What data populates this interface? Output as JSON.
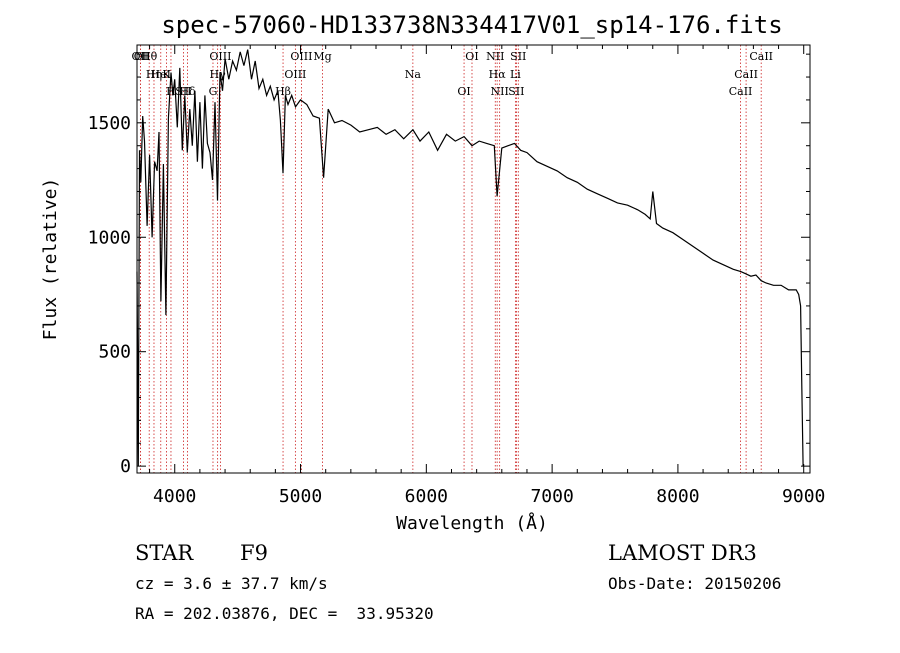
{
  "chart_data": {
    "type": "line",
    "title": "spec-57060-HD133738N334417V01_sp14-176.fits",
    "xlabel": "Wavelength (Å)",
    "ylabel": "Flux (relative)",
    "xlim": [
      3700,
      9050
    ],
    "ylim": [
      -30,
      1840
    ],
    "x_ticks": [
      4000,
      5000,
      6000,
      7000,
      8000,
      9000
    ],
    "x_tick_labels": [
      "4000",
      "5000",
      "6000",
      "7000",
      "8000",
      "9000"
    ],
    "y_ticks": [
      0,
      500,
      1000,
      1500
    ],
    "y_tick_labels": [
      "0",
      "500",
      "1000",
      "1500"
    ],
    "grid": false,
    "series": [
      {
        "name": "spectrum",
        "color": "#000000",
        "x": [
          3700,
          3710,
          3720,
          3730,
          3745,
          3760,
          3780,
          3800,
          3820,
          3840,
          3860,
          3875,
          3890,
          3910,
          3930,
          3950,
          3970,
          3985,
          4000,
          4020,
          4040,
          4060,
          4080,
          4100,
          4120,
          4140,
          4160,
          4180,
          4200,
          4220,
          4240,
          4260,
          4280,
          4300,
          4320,
          4340,
          4360,
          4380,
          4400,
          4430,
          4460,
          4490,
          4520,
          4550,
          4580,
          4610,
          4640,
          4670,
          4700,
          4730,
          4760,
          4790,
          4820,
          4840,
          4861,
          4880,
          4900,
          4930,
          4960,
          5000,
          5050,
          5100,
          5150,
          5183,
          5220,
          5270,
          5330,
          5400,
          5470,
          5540,
          5610,
          5680,
          5750,
          5820,
          5893,
          5950,
          6020,
          6090,
          6160,
          6230,
          6300,
          6363,
          6420,
          6480,
          6540,
          6563,
          6600,
          6650,
          6700,
          6750,
          6800,
          6880,
          6960,
          7040,
          7120,
          7200,
          7280,
          7360,
          7440,
          7520,
          7600,
          7680,
          7740,
          7780,
          7800,
          7830,
          7880,
          7960,
          8040,
          8120,
          8200,
          8280,
          8360,
          8440,
          8500,
          8542,
          8580,
          8620,
          8662,
          8700,
          8760,
          8820,
          8880,
          8940,
          8960,
          8975,
          8985,
          8995
        ],
        "y": [
          850,
          0,
          1380,
          1240,
          1530,
          1420,
          1050,
          1360,
          1000,
          1330,
          1290,
          1460,
          720,
          1320,
          660,
          1520,
          1720,
          1620,
          1690,
          1480,
          1740,
          1380,
          1620,
          1370,
          1560,
          1400,
          1640,
          1330,
          1590,
          1300,
          1620,
          1410,
          1370,
          1250,
          1590,
          1160,
          1720,
          1640,
          1780,
          1690,
          1770,
          1730,
          1810,
          1750,
          1820,
          1690,
          1770,
          1650,
          1690,
          1620,
          1660,
          1600,
          1640,
          1510,
          1280,
          1620,
          1580,
          1620,
          1570,
          1600,
          1580,
          1530,
          1520,
          1260,
          1560,
          1500,
          1510,
          1490,
          1460,
          1470,
          1480,
          1450,
          1470,
          1430,
          1470,
          1420,
          1460,
          1380,
          1450,
          1420,
          1440,
          1400,
          1420,
          1410,
          1400,
          1180,
          1390,
          1400,
          1410,
          1380,
          1370,
          1330,
          1310,
          1290,
          1260,
          1240,
          1210,
          1190,
          1170,
          1150,
          1140,
          1120,
          1100,
          1080,
          1200,
          1060,
          1040,
          1020,
          990,
          960,
          930,
          900,
          880,
          860,
          850,
          840,
          830,
          835,
          810,
          800,
          790,
          790,
          770,
          770,
          750,
          700,
          350,
          0
        ]
      }
    ],
    "line_markers": [
      {
        "label": "Hθ",
        "x": 3797
      },
      {
        "label": "K",
        "x": 3934
      },
      {
        "label": "Hδ",
        "x": 4102
      },
      {
        "label": "OI",
        "x": 3727
      },
      {
        "label": "HeI",
        "x": 3889
      },
      {
        "label": "SII",
        "x": 4069
      },
      {
        "label": "OII",
        "x": 3727
      },
      {
        "label": "Hη",
        "x": 3835
      },
      {
        "label": "H",
        "x": 3970
      },
      {
        "label": "OIII",
        "x": 4363
      },
      {
        "label": "Hγ",
        "x": 4341
      },
      {
        "label": "G",
        "x": 4304
      },
      {
        "label": "OIII",
        "x": 5007
      },
      {
        "label": "OIII",
        "x": 4959
      },
      {
        "label": "Hβ",
        "x": 4861
      },
      {
        "label": "Mg",
        "x": 5175
      },
      {
        "label": "Na",
        "x": 5893
      },
      {
        "label": "OI",
        "x": 6300
      },
      {
        "label": "OI",
        "x": 6363
      },
      {
        "label": "Hα",
        "x": 6563
      },
      {
        "label": "SII",
        "x": 6716
      },
      {
        "label": "NII",
        "x": 6548
      },
      {
        "label": "Li",
        "x": 6708
      },
      {
        "label": "NII",
        "x": 6583
      },
      {
        "label": "SII",
        "x": 6731
      },
      {
        "label": "CaII",
        "x": 8542
      },
      {
        "label": "CaII",
        "x": 8498
      },
      {
        "label": "CaII",
        "x": 8662
      }
    ],
    "marker_color": "#cc2222"
  },
  "info": {
    "object_type": "STAR",
    "subclass": "F9",
    "survey": "LAMOST DR3",
    "redshift": "cz = 3.6 ± 37.7 km/s",
    "obs_date": "Obs-Date: 20150206",
    "coords": "RA = 202.03876, DEC =  33.95320"
  }
}
